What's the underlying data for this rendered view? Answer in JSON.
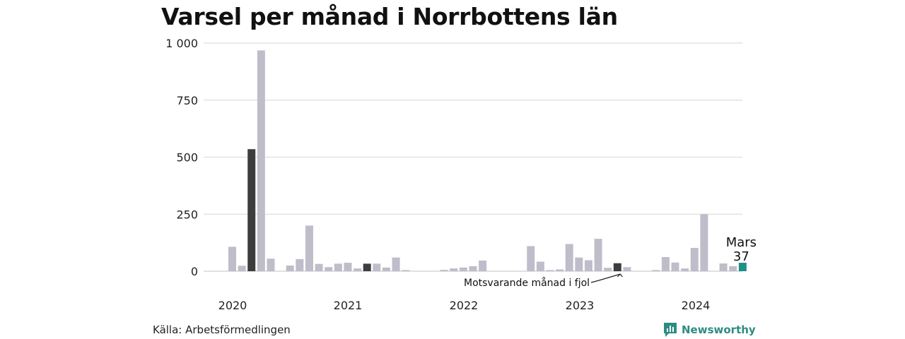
{
  "title": "Varsel per månad i Norrbottens län",
  "source": "Källa: Arbetsförmedlingen",
  "brand": "Newsworthy",
  "colors": {
    "bar": "#bfbdca",
    "prior_year": "#3d3d3d",
    "highlight": "#1d9088",
    "grid": "#dddddd"
  },
  "chart_data": {
    "type": "bar",
    "ylim": [
      0,
      1000
    ],
    "yticks": [
      0,
      250,
      500,
      750,
      1000
    ],
    "ytick_labels": [
      "0",
      "250",
      "500",
      "750",
      "1 000"
    ],
    "years": [
      "2020",
      "2021",
      "2022",
      "2023",
      "2024"
    ],
    "grid": true,
    "values": [
      107,
      24,
      535,
      968,
      55,
      0,
      25,
      53,
      200,
      32,
      18,
      33,
      37,
      12,
      33,
      33,
      16,
      60,
      5,
      0,
      0,
      0,
      6,
      12,
      16,
      22,
      47,
      0,
      0,
      0,
      0,
      110,
      42,
      5,
      8,
      119,
      60,
      48,
      142,
      15,
      35,
      18,
      0,
      0,
      5,
      62,
      38,
      12,
      102,
      250,
      0,
      34,
      22,
      37
    ],
    "kinds": [
      "n",
      "n",
      "d",
      "n",
      "n",
      "n",
      "n",
      "n",
      "n",
      "n",
      "n",
      "n",
      "n",
      "n",
      "d",
      "n",
      "n",
      "n",
      "n",
      "n",
      "n",
      "n",
      "n",
      "n",
      "n",
      "n",
      "n",
      "n",
      "n",
      "n",
      "n",
      "n",
      "n",
      "n",
      "n",
      "n",
      "n",
      "n",
      "n",
      "n",
      "d",
      "n",
      "n",
      "n",
      "n",
      "n",
      "n",
      "n",
      "n",
      "n",
      "n",
      "n",
      "n",
      "h"
    ],
    "highlight": {
      "month": "Mars",
      "value": "37"
    },
    "annotation": "Motsvarande månad i fjol"
  }
}
